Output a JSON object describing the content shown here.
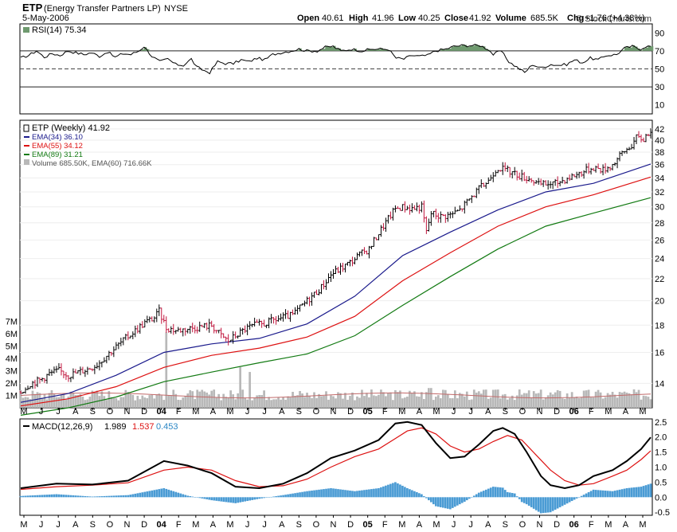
{
  "header": {
    "symbol": "ETP",
    "name": "(Energy Transfer Partners LP)",
    "exchange": "NYSE",
    "date": "5-May-2006",
    "open_label": "Open",
    "open": "40.61",
    "high_label": "High",
    "high": "41.96",
    "low_label": "Low",
    "low": "40.25",
    "close_label": "Close",
    "close": "41.92",
    "volume_label": "Volume",
    "volume": "685.5K",
    "chg_label": "Chg",
    "chg": "+1.76 (+4.38%)",
    "watermark": "© StockCharts.com"
  },
  "colors": {
    "ema34": "#1a1a8c",
    "ema55": "#dd1111",
    "ema89": "#127a12",
    "rsi_fill": "#6f9a6f",
    "macd_hist": "#4a9bd4",
    "volume_bar": "#b8b8b8",
    "up_bar": "#000000",
    "down_bar": "#c0143c"
  },
  "chart_data": [
    {
      "type": "line",
      "panel": "rsi",
      "label": "RSI(14) 75.34",
      "yticks": [
        90,
        70,
        50,
        30,
        10
      ],
      "ylim": [
        0,
        100
      ],
      "reference_lines": [
        70,
        50,
        30
      ],
      "series": [
        {
          "name": "RSI(14)",
          "points": [
            [
              0,
              62
            ],
            [
              3,
              65
            ],
            [
              6,
              70
            ],
            [
              9,
              63
            ],
            [
              12,
              67
            ],
            [
              15,
              65
            ],
            [
              18,
              70
            ],
            [
              21,
              68
            ],
            [
              24,
              66
            ],
            [
              27,
              68
            ],
            [
              30,
              64
            ],
            [
              33,
              69
            ],
            [
              36,
              63
            ],
            [
              39,
              67
            ],
            [
              42,
              66
            ],
            [
              45,
              70
            ],
            [
              47,
              75
            ],
            [
              50,
              64
            ],
            [
              53,
              58
            ],
            [
              56,
              61
            ],
            [
              59,
              55
            ],
            [
              62,
              54
            ],
            [
              65,
              61
            ],
            [
              67,
              52
            ],
            [
              70,
              48
            ],
            [
              72,
              46
            ],
            [
              75,
              58
            ],
            [
              78,
              56
            ],
            [
              81,
              56
            ],
            [
              84,
              60
            ],
            [
              87,
              58
            ],
            [
              90,
              62
            ],
            [
              93,
              60
            ],
            [
              96,
              66
            ],
            [
              99,
              68
            ],
            [
              103,
              70
            ],
            [
              106,
              72
            ],
            [
              109,
              70
            ],
            [
              113,
              70
            ],
            [
              116,
              74
            ],
            [
              119,
              75
            ],
            [
              122,
              70
            ],
            [
              126,
              72
            ],
            [
              130,
              70
            ],
            [
              134,
              72
            ],
            [
              138,
              72
            ],
            [
              140,
              72
            ],
            [
              143,
              62
            ],
            [
              146,
              61
            ],
            [
              149,
              65
            ],
            [
              152,
              64
            ],
            [
              155,
              65
            ],
            [
              158,
              70
            ],
            [
              162,
              72
            ],
            [
              165,
              75
            ],
            [
              168,
              76
            ],
            [
              172,
              76
            ],
            [
              175,
              76
            ],
            [
              178,
              72
            ],
            [
              180,
              66
            ],
            [
              183,
              70
            ],
            [
              186,
              58
            ],
            [
              189,
              52
            ],
            [
              192,
              46
            ],
            [
              195,
              55
            ],
            [
              198,
              51
            ],
            [
              202,
              55
            ],
            [
              205,
              54
            ],
            [
              208,
              55
            ],
            [
              211,
              60
            ],
            [
              214,
              57
            ],
            [
              217,
              62
            ],
            [
              220,
              60
            ],
            [
              223,
              65
            ],
            [
              227,
              66
            ],
            [
              230,
              73
            ],
            [
              233,
              75
            ],
            [
              236,
              72
            ],
            [
              238,
              75
            ]
          ]
        }
      ]
    },
    {
      "type": "ohlc",
      "panel": "price",
      "label": "ETP (Weekly) 41.92",
      "legend": [
        "EMA(34) 36.10",
        "EMA(55) 34.12",
        "EMA(89) 31.21",
        "Volume 685.50K, EMA(60) 716.66K"
      ],
      "yticks": [
        42,
        40,
        38,
        36,
        34,
        32,
        30,
        28,
        26,
        24,
        22,
        20,
        18,
        16,
        14
      ],
      "volume_ticks": [
        "7M",
        "6M",
        "5M",
        "4M",
        "3M",
        "2M",
        "1M"
      ],
      "x_labels": [
        "M",
        "J",
        "J",
        "A",
        "S",
        "O",
        "N",
        "D",
        "04",
        "F",
        "M",
        "A",
        "M",
        "J",
        "J",
        "A",
        "S",
        "O",
        "N",
        "D",
        "05",
        "F",
        "M",
        "A",
        "M",
        "J",
        "J",
        "A",
        "S",
        "O",
        "N",
        "D",
        "06",
        "F",
        "M",
        "A",
        "M"
      ],
      "close_path": [
        [
          0,
          13.5
        ],
        [
          4,
          14.0
        ],
        [
          8,
          14.2
        ],
        [
          12,
          14.6
        ],
        [
          16,
          14.8
        ],
        [
          20,
          14.5
        ],
        [
          24,
          14.7
        ],
        [
          28,
          14.9
        ],
        [
          32,
          15.2
        ],
        [
          36,
          15.8
        ],
        [
          40,
          16.4
        ],
        [
          44,
          17.0
        ],
        [
          48,
          17.6
        ],
        [
          52,
          18.2
        ],
        [
          56,
          18.6
        ],
        [
          58,
          19.1
        ],
        [
          61,
          17.8
        ],
        [
          65,
          17.6
        ],
        [
          69,
          17.7
        ],
        [
          72,
          17.8
        ],
        [
          76,
          17.9
        ],
        [
          80,
          18.0
        ],
        [
          84,
          17.2
        ],
        [
          87,
          16.8
        ],
        [
          90,
          17.2
        ],
        [
          94,
          17.7
        ],
        [
          98,
          18.0
        ],
        [
          102,
          18.1
        ],
        [
          106,
          18.4
        ],
        [
          110,
          18.6
        ],
        [
          114,
          18.8
        ],
        [
          118,
          19.6
        ],
        [
          122,
          20.4
        ],
        [
          126,
          21.2
        ],
        [
          130,
          22.4
        ],
        [
          134,
          23.0
        ],
        [
          138,
          23.6
        ],
        [
          142,
          24.4
        ],
        [
          146,
          25.0
        ],
        [
          150,
          26.8
        ],
        [
          154,
          28.5
        ],
        [
          157,
          29.8
        ],
        [
          160,
          30.0
        ],
        [
          164,
          29.8
        ],
        [
          168,
          30.0
        ],
        [
          170,
          26.9
        ],
        [
          172,
          29.2
        ],
        [
          176,
          28.8
        ],
        [
          180,
          29.0
        ],
        [
          184,
          29.6
        ],
        [
          188,
          31.0
        ],
        [
          192,
          32.4
        ],
        [
          196,
          33.6
        ],
        [
          198,
          34.8
        ],
        [
          200,
          35.6
        ],
        [
          203,
          35.2
        ],
        [
          206,
          34.8
        ],
        [
          210,
          34.2
        ],
        [
          214,
          33.8
        ],
        [
          217,
          33.0
        ],
        [
          220,
          33.1
        ],
        [
          224,
          33.2
        ],
        [
          228,
          33.8
        ],
        [
          232,
          34.4
        ],
        [
          236,
          35.0
        ],
        [
          240,
          35.6
        ],
        [
          244,
          35.2
        ],
        [
          248,
          36.0
        ],
        [
          252,
          37.8
        ],
        [
          256,
          39.2
        ],
        [
          258,
          40.4
        ],
        [
          261,
          40.2
        ],
        [
          264,
          41.92
        ]
      ],
      "series": [
        {
          "name": "EMA(34)",
          "points": [
            [
              0,
              12.9
            ],
            [
              20,
              13.4
            ],
            [
              40,
              14.5
            ],
            [
              60,
              16.0
            ],
            [
              80,
              16.6
            ],
            [
              100,
              17.0
            ],
            [
              120,
              18.1
            ],
            [
              140,
              20.4
            ],
            [
              160,
              24.3
            ],
            [
              180,
              26.9
            ],
            [
              200,
              29.6
            ],
            [
              220,
              32.0
            ],
            [
              240,
              33.2
            ],
            [
              264,
              36.1
            ]
          ]
        },
        {
          "name": "EMA(55)",
          "points": [
            [
              0,
              12.7
            ],
            [
              20,
              13.1
            ],
            [
              40,
              13.8
            ],
            [
              60,
              15.0
            ],
            [
              80,
              15.8
            ],
            [
              100,
              16.3
            ],
            [
              120,
              17.1
            ],
            [
              140,
              18.7
            ],
            [
              160,
              21.8
            ],
            [
              180,
              24.6
            ],
            [
              200,
              27.6
            ],
            [
              220,
              30.0
            ],
            [
              240,
              31.6
            ],
            [
              264,
              34.12
            ]
          ]
        },
        {
          "name": "EMA(89)",
          "points": [
            [
              0,
              12.2
            ],
            [
              20,
              12.6
            ],
            [
              40,
              13.2
            ],
            [
              60,
              14.1
            ],
            [
              80,
              14.7
            ],
            [
              100,
              15.3
            ],
            [
              120,
              15.9
            ],
            [
              140,
              17.2
            ],
            [
              160,
              19.6
            ],
            [
              180,
              22.2
            ],
            [
              200,
              25.0
            ],
            [
              220,
              27.6
            ],
            [
              240,
              29.2
            ],
            [
              264,
              31.21
            ]
          ]
        }
      ]
    },
    {
      "type": "line",
      "panel": "macd",
      "label": "MACD(12,26,9)",
      "values": {
        "macd": "1.989",
        "signal": "1.537",
        "histogram": "0.453"
      },
      "yticks": [
        2.5,
        2.0,
        1.5,
        1.0,
        0.5,
        0.0,
        -0.5
      ],
      "ylim": [
        -0.6,
        2.6
      ],
      "series": [
        {
          "name": "MACD",
          "points": [
            [
              0,
              0.3
            ],
            [
              15,
              0.45
            ],
            [
              30,
              0.42
            ],
            [
              45,
              0.55
            ],
            [
              60,
              1.2
            ],
            [
              70,
              1.05
            ],
            [
              80,
              0.8
            ],
            [
              90,
              0.35
            ],
            [
              100,
              0.3
            ],
            [
              110,
              0.45
            ],
            [
              120,
              0.8
            ],
            [
              130,
              1.3
            ],
            [
              140,
              1.55
            ],
            [
              150,
              1.9
            ],
            [
              157,
              2.45
            ],
            [
              162,
              2.5
            ],
            [
              168,
              2.4
            ],
            [
              174,
              1.8
            ],
            [
              180,
              1.3
            ],
            [
              186,
              1.35
            ],
            [
              192,
              1.75
            ],
            [
              198,
              2.2
            ],
            [
              202,
              2.3
            ],
            [
              207,
              2.1
            ],
            [
              212,
              1.5
            ],
            [
              218,
              0.7
            ],
            [
              222,
              0.4
            ],
            [
              228,
              0.3
            ],
            [
              234,
              0.4
            ],
            [
              240,
              0.7
            ],
            [
              248,
              0.9
            ],
            [
              254,
              1.2
            ],
            [
              260,
              1.6
            ],
            [
              264,
              1.99
            ]
          ]
        },
        {
          "name": "Signal",
          "points": [
            [
              0,
              0.26
            ],
            [
              15,
              0.35
            ],
            [
              30,
              0.4
            ],
            [
              45,
              0.48
            ],
            [
              60,
              0.9
            ],
            [
              70,
              1.0
            ],
            [
              80,
              0.9
            ],
            [
              90,
              0.55
            ],
            [
              100,
              0.35
            ],
            [
              110,
              0.38
            ],
            [
              120,
              0.6
            ],
            [
              130,
              1.0
            ],
            [
              140,
              1.35
            ],
            [
              150,
              1.6
            ],
            [
              157,
              1.95
            ],
            [
              162,
              2.2
            ],
            [
              168,
              2.3
            ],
            [
              174,
              2.1
            ],
            [
              180,
              1.7
            ],
            [
              186,
              1.5
            ],
            [
              192,
              1.6
            ],
            [
              198,
              1.85
            ],
            [
              204,
              2.05
            ],
            [
              210,
              1.9
            ],
            [
              216,
              1.4
            ],
            [
              222,
              0.9
            ],
            [
              228,
              0.55
            ],
            [
              234,
              0.4
            ],
            [
              240,
              0.45
            ],
            [
              248,
              0.7
            ],
            [
              254,
              0.9
            ],
            [
              260,
              1.25
            ],
            [
              264,
              1.54
            ]
          ]
        }
      ]
    }
  ]
}
